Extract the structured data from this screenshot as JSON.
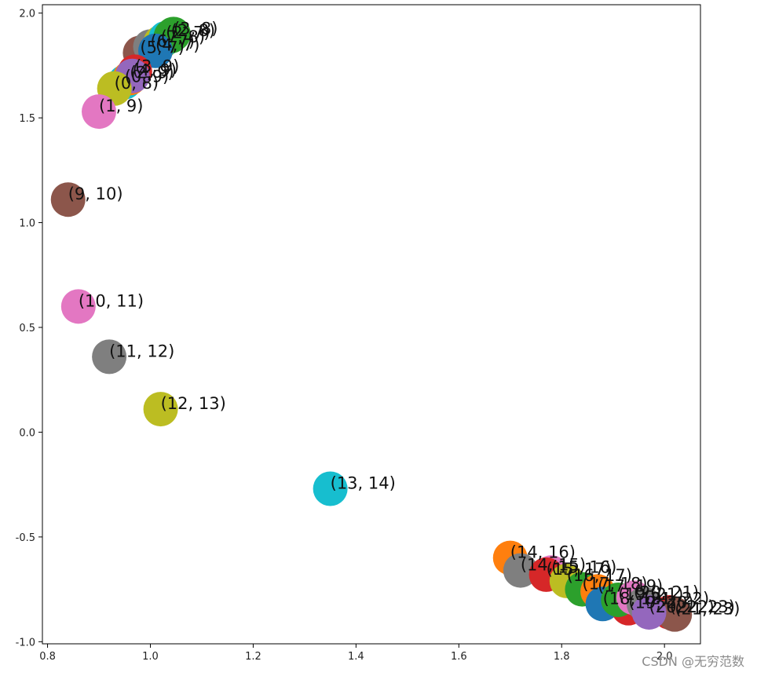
{
  "chart_data": {
    "type": "scatter",
    "title": "",
    "xlabel": "",
    "ylabel": "",
    "xlim": [
      0.79,
      2.07
    ],
    "ylim": [
      -1.01,
      2.04
    ],
    "grid": false,
    "xticks": [
      "0.8",
      "1.0",
      "1.2",
      "1.4",
      "1.6",
      "1.8",
      "2.0"
    ],
    "yticks": [
      "-1.0",
      "-0.5",
      "0.0",
      "0.5",
      "1.0",
      "1.5",
      "2.0"
    ],
    "points": [
      {
        "x": 0.98,
        "y": 1.81,
        "color": "#8c564b",
        "label": "(5, 7)"
      },
      {
        "x": 1.0,
        "y": 1.84,
        "color": "#7f7f7f",
        "label": "(6, 7)"
      },
      {
        "x": 1.02,
        "y": 1.86,
        "color": "#bcbd22",
        "label": "(7, 8)"
      },
      {
        "x": 1.03,
        "y": 1.88,
        "color": "#17becf",
        "label": "(2, 7)"
      },
      {
        "x": 1.04,
        "y": 1.89,
        "color": "#2ca02c",
        "label": "(2, 8)"
      },
      {
        "x": 1.045,
        "y": 1.9,
        "color": "#2ca02c",
        "label": "(3, 8)"
      },
      {
        "x": 1.01,
        "y": 1.82,
        "color": "#1f77b4",
        "label": "(4, 7)"
      },
      {
        "x": 0.95,
        "y": 1.67,
        "color": "#17becf",
        "label": "(0, 9)"
      },
      {
        "x": 0.96,
        "y": 1.69,
        "color": "#ff7f0e",
        "label": "(2, 9)"
      },
      {
        "x": 0.97,
        "y": 1.72,
        "color": "#d62728",
        "label": "(3, 9)"
      },
      {
        "x": 0.965,
        "y": 1.7,
        "color": "#9467bd",
        "label": "(4, 9)"
      },
      {
        "x": 0.93,
        "y": 1.64,
        "color": "#bcbd22",
        "label": "(0, 8)"
      },
      {
        "x": 0.9,
        "y": 1.53,
        "color": "#e377c2",
        "label": "(1, 9)"
      },
      {
        "x": 0.84,
        "y": 1.11,
        "color": "#8c564b",
        "label": "(9, 10)"
      },
      {
        "x": 0.86,
        "y": 0.6,
        "color": "#e377c2",
        "label": "(10, 11)"
      },
      {
        "x": 0.92,
        "y": 0.36,
        "color": "#7f7f7f",
        "label": "(11, 12)"
      },
      {
        "x": 1.02,
        "y": 0.11,
        "color": "#bcbd22",
        "label": "(12, 13)"
      },
      {
        "x": 1.35,
        "y": -0.27,
        "color": "#17becf",
        "label": "(13, 14)"
      },
      {
        "x": 1.7,
        "y": -0.6,
        "color": "#ff7f0e",
        "label": "(14, 16)"
      },
      {
        "x": 1.72,
        "y": -0.66,
        "color": "#7f7f7f",
        "label": "(14, 15)"
      },
      {
        "x": 1.78,
        "y": -0.67,
        "color": "#e377c2",
        "label": "(15, 16)"
      },
      {
        "x": 1.77,
        "y": -0.68,
        "color": "#d62728",
        "label": "(15, 17)"
      },
      {
        "x": 1.81,
        "y": -0.71,
        "color": "#bcbd22",
        "label": "(16, 17)"
      },
      {
        "x": 1.84,
        "y": -0.75,
        "color": "#2ca02c",
        "label": "(17, 18)"
      },
      {
        "x": 1.87,
        "y": -0.76,
        "color": "#ff7f0e",
        "label": "(17, 19)"
      },
      {
        "x": 1.88,
        "y": -0.82,
        "color": "#1f77b4",
        "label": "(18, 19)"
      },
      {
        "x": 1.93,
        "y": -0.84,
        "color": "#d62728",
        "label": "(19, 20)"
      },
      {
        "x": 1.91,
        "y": -0.8,
        "color": "#2ca02c",
        "label": "(19, 21)"
      },
      {
        "x": 1.94,
        "y": -0.79,
        "color": "#e377c2",
        "label": "(20, 21)"
      },
      {
        "x": 1.96,
        "y": -0.82,
        "color": "#7f7f7f",
        "label": "(21, 22)"
      },
      {
        "x": 2.01,
        "y": -0.86,
        "color": "#d62728",
        "label": "(22, 23)"
      },
      {
        "x": 2.02,
        "y": -0.87,
        "color": "#8c564b",
        "label": "(21, 23)"
      },
      {
        "x": 1.97,
        "y": -0.86,
        "color": "#9467bd",
        "label": "(20, 22)"
      }
    ]
  },
  "watermark": "CSDN @无穷范数"
}
